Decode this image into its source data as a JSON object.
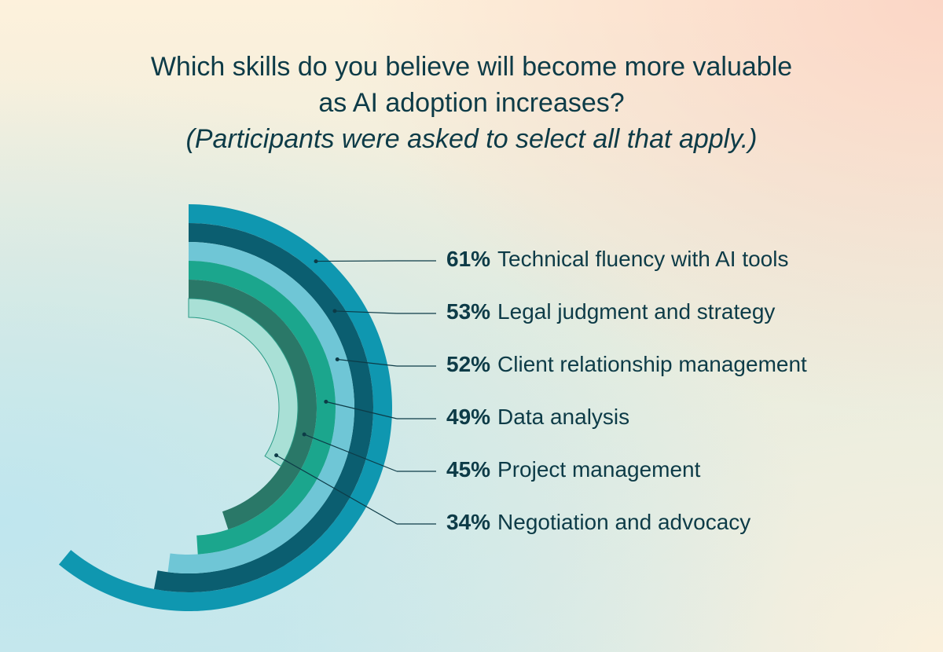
{
  "chart_data": {
    "type": "radial-bar",
    "title": "Which skills do you believe will become more valuable as AI adoption increases?",
    "subtitle": "(Participants were asked to select all that apply.)",
    "categories": [
      "Technical fluency with AI tools",
      "Legal judgment and strategy",
      "Client relationship management",
      "Data analysis",
      "Project management",
      "Negotiation and advocacy"
    ],
    "values": [
      61,
      53,
      52,
      49,
      45,
      34
    ],
    "value_labels": [
      "61%",
      "53%",
      "52%",
      "49%",
      "45%",
      "34%"
    ],
    "colors": [
      "#0f97b0",
      "#0b5e70",
      "#6fc6d6",
      "#1ba68d",
      "#2a7868",
      "#a9e0d6"
    ]
  }
}
